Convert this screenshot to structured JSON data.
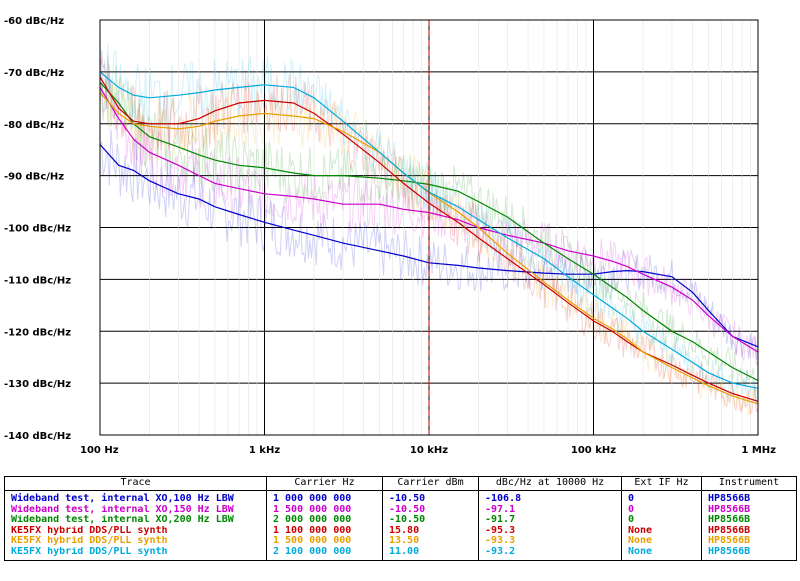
{
  "chart_data": {
    "type": "line",
    "title": "",
    "xlabel": "",
    "ylabel": "",
    "x_scale": "log",
    "xlim": [
      100,
      1000000
    ],
    "ylim": [
      -140,
      -60
    ],
    "grid": true,
    "x_tick_labels": [
      "100 Hz",
      "1 kHz",
      "10 kHz",
      "100 kHz",
      "1 MHz"
    ],
    "x_tick_values": [
      100,
      1000,
      10000,
      100000,
      1000000
    ],
    "y_tick_labels": [
      "-60 dBc/Hz",
      "-70 dBc/Hz",
      "-80 dBc/Hz",
      "-90 dBc/Hz",
      "-100 dBc/Hz",
      "-110 dBc/Hz",
      "-120 dBc/Hz",
      "-130 dBc/Hz",
      "-140 dBc/Hz"
    ],
    "y_tick_values": [
      -60,
      -70,
      -80,
      -90,
      -100,
      -110,
      -120,
      -130,
      -140
    ],
    "marker_x": 10000,
    "marker_color": "#cc0000",
    "series": [
      {
        "name": "Wideband test, internal XO, 100 Hz LBW",
        "color": "#0000cc",
        "x": [
          100,
          130,
          160,
          200,
          300,
          400,
          500,
          700,
          1000,
          1500,
          2000,
          3000,
          5000,
          7000,
          10000,
          15000,
          20000,
          30000,
          50000,
          70000,
          100000,
          130000,
          160000,
          200000,
          300000,
          400000,
          500000,
          700000,
          1000000
        ],
        "y": [
          -84,
          -88,
          -89,
          -91,
          -93.5,
          -94.5,
          -96,
          -97.5,
          -99,
          -100.5,
          -101.5,
          -103,
          -104.5,
          -105.5,
          -106.8,
          -107.3,
          -107.8,
          -108.3,
          -108.8,
          -109,
          -109,
          -108.5,
          -108.3,
          -108.5,
          -109.5,
          -112.5,
          -116,
          -121,
          -123
        ]
      },
      {
        "name": "Wideband test, internal XO, 150 Hz LBW",
        "color": "#cc00cc",
        "x": [
          100,
          130,
          160,
          200,
          300,
          400,
          500,
          700,
          1000,
          1500,
          2000,
          3000,
          5000,
          7000,
          10000,
          15000,
          20000,
          30000,
          50000,
          70000,
          100000,
          130000,
          160000,
          200000,
          300000,
          400000,
          500000,
          700000,
          1000000
        ],
        "y": [
          -73,
          -79,
          -83,
          -85.5,
          -88,
          -90,
          -91.5,
          -92.5,
          -93.5,
          -94,
          -94.5,
          -95.5,
          -95.5,
          -96.5,
          -97.1,
          -98.5,
          -100,
          -101.5,
          -103,
          -104.5,
          -105.5,
          -106.5,
          -107.5,
          -109,
          -111.5,
          -114,
          -117,
          -121,
          -124
        ]
      },
      {
        "name": "Wideband test, internal XO, 200 Hz LBW",
        "color": "#008800",
        "x": [
          100,
          130,
          160,
          200,
          300,
          400,
          500,
          700,
          1000,
          1500,
          2000,
          3000,
          5000,
          7000,
          10000,
          15000,
          20000,
          30000,
          50000,
          70000,
          100000,
          130000,
          160000,
          200000,
          300000,
          400000,
          500000,
          700000,
          1000000
        ],
        "y": [
          -72,
          -76,
          -80,
          -82.5,
          -84.5,
          -86,
          -87,
          -88,
          -88.5,
          -89.5,
          -90,
          -90,
          -90.5,
          -91,
          -91.7,
          -93,
          -95,
          -98,
          -103,
          -106,
          -109,
          -111.5,
          -113.5,
          -116,
          -120,
          -122,
          -124,
          -127,
          -129.5
        ]
      },
      {
        "name": "KE5FX hybrid DDS/PLL synth",
        "color": "#cc0000",
        "x": [
          100,
          130,
          160,
          200,
          300,
          400,
          500,
          700,
          1000,
          1500,
          2000,
          3000,
          5000,
          7000,
          10000,
          15000,
          20000,
          30000,
          50000,
          70000,
          100000,
          130000,
          160000,
          200000,
          300000,
          400000,
          500000,
          700000,
          1000000
        ],
        "y": [
          -71,
          -77,
          -79.5,
          -80,
          -80,
          -79,
          -77.5,
          -76,
          -75.5,
          -76,
          -78,
          -82,
          -87.5,
          -91.5,
          -95.3,
          -99,
          -102,
          -106,
          -111,
          -114.5,
          -118,
          -120,
          -122,
          -124,
          -126.5,
          -128.5,
          -130,
          -132,
          -133.5
        ]
      },
      {
        "name": "KE5FX hybrid DDS/PLL synth",
        "color": "#e8a000",
        "x": [
          100,
          130,
          160,
          200,
          300,
          400,
          500,
          700,
          1000,
          1500,
          2000,
          3000,
          5000,
          7000,
          10000,
          15000,
          20000,
          30000,
          50000,
          70000,
          100000,
          130000,
          160000,
          200000,
          300000,
          400000,
          500000,
          700000,
          1000000
        ],
        "y": [
          -74,
          -78,
          -80,
          -80.5,
          -81,
          -80.5,
          -79.5,
          -78.5,
          -78,
          -78.5,
          -79,
          -81.5,
          -85.5,
          -89.5,
          -93.3,
          -97,
          -100,
          -105,
          -110.5,
          -114,
          -117.5,
          -119.5,
          -121.5,
          -124,
          -127,
          -129,
          -130.5,
          -132.5,
          -134
        ]
      },
      {
        "name": "KE5FX hybrid DDS/PLL synth",
        "color": "#00aadd",
        "x": [
          100,
          130,
          160,
          200,
          300,
          400,
          500,
          700,
          1000,
          1500,
          2000,
          3000,
          5000,
          7000,
          10000,
          15000,
          20000,
          30000,
          50000,
          70000,
          100000,
          130000,
          160000,
          200000,
          300000,
          400000,
          500000,
          700000,
          1000000
        ],
        "y": [
          -70,
          -73,
          -74.5,
          -75,
          -74.5,
          -74,
          -73.5,
          -73,
          -72.5,
          -73,
          -75,
          -79.5,
          -85.5,
          -89.5,
          -93.2,
          -96,
          -98.5,
          -102,
          -106,
          -109.5,
          -113,
          -115.5,
          -117.5,
          -120,
          -123.5,
          -126,
          -128,
          -130,
          -131
        ]
      }
    ]
  },
  "table": {
    "headers": [
      "Trace",
      "Carrier Hz",
      "Carrier dBm",
      "dBc/Hz at 10000 Hz",
      "Ext IF Hz",
      "Instrument"
    ],
    "rows": [
      {
        "color": "#0000cc",
        "cells": [
          "Wideband test, internal XO,100 Hz LBW",
          "1 000 000 000",
          "-10.50",
          "-106.8",
          "0",
          "HP8566B"
        ]
      },
      {
        "color": "#cc00cc",
        "cells": [
          "Wideband test, internal XO,150 Hz LBW",
          "1 500 000 000",
          "-10.50",
          "-97.1",
          "0",
          "HP8566B"
        ]
      },
      {
        "color": "#008800",
        "cells": [
          "Wideband test, internal XO,200 Hz LBW",
          "2 000 000 000",
          "-10.50",
          "-91.7",
          "0",
          "HP8566B"
        ]
      },
      {
        "color": "#cc0000",
        "cells": [
          "KE5FX hybrid DDS/PLL synth",
          "1 100 000 000",
          "15.80",
          "-95.3",
          "None",
          "HP8566B"
        ]
      },
      {
        "color": "#e8a000",
        "cells": [
          "KE5FX hybrid DDS/PLL synth",
          "1 500 000 000",
          "13.50",
          "-93.3",
          "None",
          "HP8566B"
        ]
      },
      {
        "color": "#00aadd",
        "cells": [
          "KE5FX hybrid DDS/PLL synth",
          "2 100 000 000",
          "11.00",
          "-93.2",
          "None",
          "HP8566B"
        ]
      }
    ]
  }
}
